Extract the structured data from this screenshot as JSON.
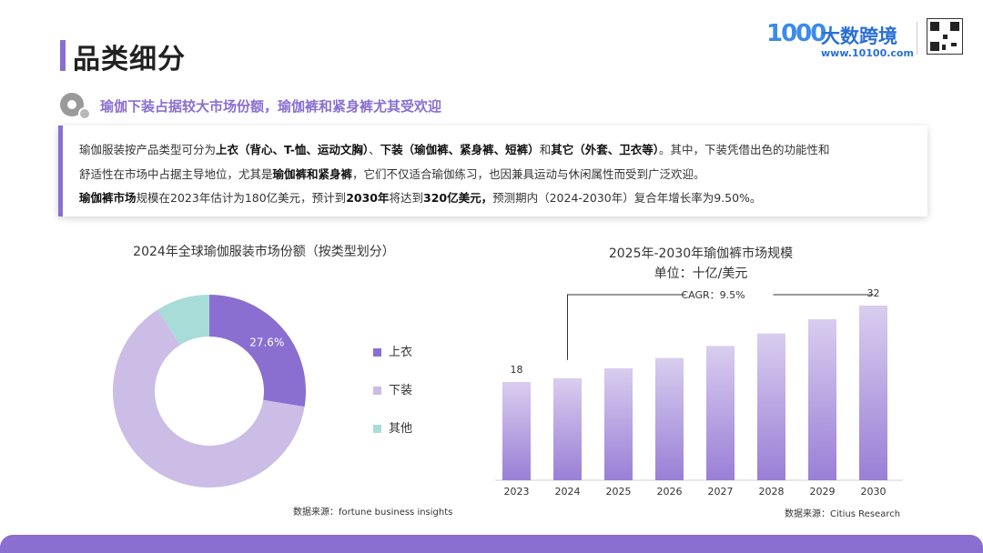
{
  "header": {
    "page_title": "品类细分",
    "subtitle": "瑜伽下装占据较大市场份额，瑜伽裤和紧身裤尤其受欢迎"
  },
  "logo": {
    "mark": "1000",
    "name": "大数跨境",
    "url": "www.10100.com"
  },
  "description": {
    "line1": [
      {
        "t": "瑜伽服装按产品类型可分为",
        "b": false
      },
      {
        "t": "上衣（背心、T-恤、运动文胸）",
        "b": true
      },
      {
        "t": "、",
        "b": false
      },
      {
        "t": "下装（瑜伽裤、紧身裤、短裤）",
        "b": true
      },
      {
        "t": "和",
        "b": false
      },
      {
        "t": "其它（外套、卫衣等）",
        "b": true
      },
      {
        "t": "。其中，下装凭借出色的功能性和",
        "b": false
      }
    ],
    "line2": [
      {
        "t": "舒适性在市场中占据主导地位，尤其是",
        "b": false
      },
      {
        "t": "瑜伽裤和紧身裤",
        "b": true
      },
      {
        "t": "，它们不仅适合瑜伽练习，也因兼具运动与休闲属性而受到广泛欢迎。",
        "b": false
      }
    ],
    "line3": [
      {
        "t": "瑜伽裤市场",
        "b": true
      },
      {
        "t": "规模在2023年估计为180亿美元，预计到",
        "b": false
      },
      {
        "t": "2030年",
        "b": true
      },
      {
        "t": "将达到",
        "b": false
      },
      {
        "t": "320亿美元，",
        "b": true
      },
      {
        "t": "预测期内（2024-2030年）复合年增长率为9.50%。",
        "b": false
      }
    ]
  },
  "colors": {
    "accent": "#8a6fd1",
    "top": "#8a6fd1",
    "bottom": "#cbbde6",
    "other": "#a8dcd9",
    "bar_top": "#d9cdef",
    "bar_bottom": "#9a7fd6"
  },
  "chart_data": [
    {
      "type": "pie",
      "title": "2024年全球瑜伽服装市场份额（按类型划分）",
      "labels": [
        "上衣",
        "下装",
        "其他"
      ],
      "values": [
        27.6,
        63.4,
        9.0
      ],
      "shown_label": "27.6%",
      "source": "数据来源：fortune business insights"
    },
    {
      "type": "bar",
      "title": "2025年-2030年瑜伽裤市场规模",
      "subtitle": "单位：十亿/美元",
      "categories": [
        "2023",
        "2024",
        "2025",
        "2026",
        "2027",
        "2028",
        "2029",
        "2030"
      ],
      "values": [
        18,
        18.7,
        20.5,
        22.4,
        24.6,
        26.9,
        29.5,
        32
      ],
      "data_labels": {
        "2023": "18",
        "2030": "32"
      },
      "annotation": "CAGR：9.5%",
      "source": "数据来源：Citius Research"
    }
  ]
}
